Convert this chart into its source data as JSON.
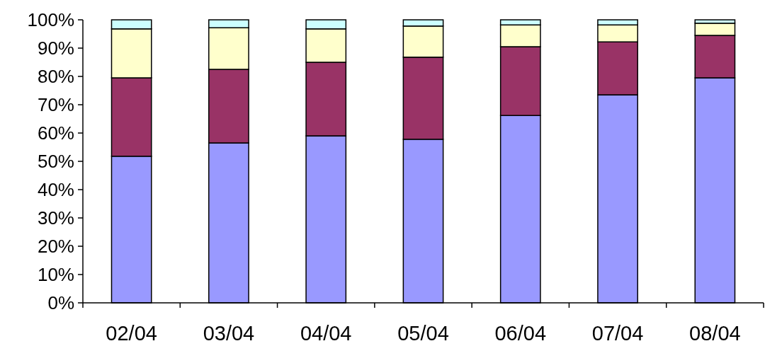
{
  "chart_data": {
    "type": "bar",
    "stacked": true,
    "categories": [
      "02/04",
      "03/04",
      "04/04",
      "05/04",
      "06/04",
      "07/04",
      "08/04"
    ],
    "series": [
      {
        "color": "#9999ff",
        "values": [
          51.8,
          56.5,
          59,
          57.8,
          66.2,
          73.5,
          79.5
        ]
      },
      {
        "color": "#993366",
        "values": [
          27.7,
          26,
          26,
          29,
          24.3,
          18.7,
          15
        ]
      },
      {
        "color": "#ffffcc",
        "values": [
          17.3,
          14.7,
          11.8,
          11,
          7.7,
          6,
          4.3
        ]
      },
      {
        "color": "#ccffff",
        "values": [
          3.2,
          2.8,
          3.2,
          2.2,
          1.8,
          1.8,
          1.2
        ]
      }
    ],
    "ylim": [
      0,
      100
    ],
    "yticks": [
      {
        "value": 0,
        "label": "0%"
      },
      {
        "value": 10,
        "label": "10%"
      },
      {
        "value": 20,
        "label": "20%"
      },
      {
        "value": 30,
        "label": "30%"
      },
      {
        "value": 40,
        "label": "40%"
      },
      {
        "value": 50,
        "label": "50%"
      },
      {
        "value": 60,
        "label": "60%"
      },
      {
        "value": 70,
        "label": "70%"
      },
      {
        "value": 80,
        "label": "80%"
      },
      {
        "value": 90,
        "label": "90%"
      },
      {
        "value": 100,
        "label": "100%"
      }
    ],
    "grid": false
  }
}
